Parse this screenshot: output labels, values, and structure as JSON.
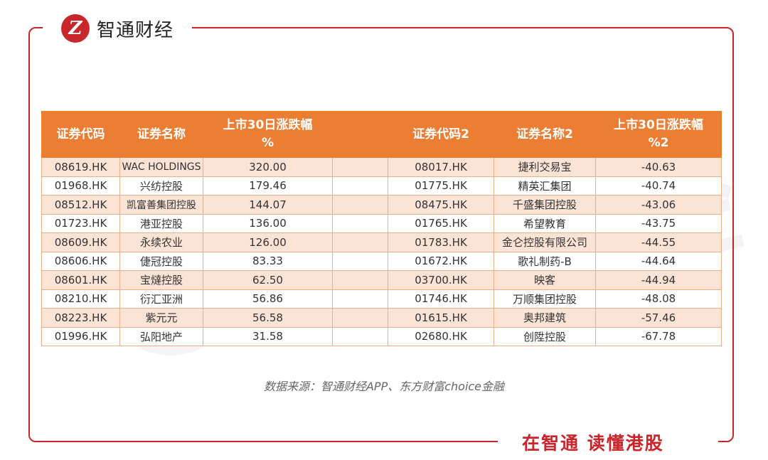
{
  "brand": {
    "logo_glyph": "Z",
    "name": "智通财经",
    "slogan": "在智通 读懂港股",
    "watermark": "智通财经",
    "accent_color": "#c9262c",
    "header_color": "#ec7e33",
    "odd_row_color": "#fbe3d5"
  },
  "table": {
    "headers": [
      "证券代码",
      "证券名称",
      "上市30日涨跌幅%",
      "",
      "证券代码2",
      "证券名称2",
      "上市30日涨跌幅%2"
    ],
    "header_lines": {
      "col3_line1": "上市30日涨跌幅",
      "col3_line2": "%",
      "col7_line1": "上市30日涨跌幅",
      "col7_line2": "%2"
    },
    "rows": [
      [
        "08619.HK",
        "WAC HOLDINGS",
        "320.00",
        "",
        "08017.HK",
        "捷利交易宝",
        "-40.63"
      ],
      [
        "01968.HK",
        "兴纺控股",
        "179.46",
        "",
        "01775.HK",
        "精英汇集团",
        "-40.74"
      ],
      [
        "08512.HK",
        "凯富善集团控股",
        "144.07",
        "",
        "08475.HK",
        "千盛集团控股",
        "-43.06"
      ],
      [
        "01723.HK",
        "港亚控股",
        "136.00",
        "",
        "01765.HK",
        "希望教育",
        "-43.75"
      ],
      [
        "08609.HK",
        "永续农业",
        "126.00",
        "",
        "01783.HK",
        "金仑控股有限公司",
        "-44.55"
      ],
      [
        "08606.HK",
        "倢冠控股",
        "83.33",
        "",
        "01672.HK",
        "歌礼制药-B",
        "-44.64"
      ],
      [
        "08601.HK",
        "宝燵控股",
        "62.50",
        "",
        "03700.HK",
        "映客",
        "-44.94"
      ],
      [
        "08210.HK",
        "衍汇亚洲",
        "56.86",
        "",
        "01746.HK",
        "万顺集团控股",
        "-48.08"
      ],
      [
        "08223.HK",
        "紫元元",
        "56.58",
        "",
        "01615.HK",
        "奥邦建筑",
        "-57.46"
      ],
      [
        "01996.HK",
        "弘阳地产",
        "31.58",
        "",
        "02680.HK",
        "创陞控股",
        "-67.78"
      ]
    ]
  },
  "source": "数据来源：智通财经APP、东方财富choice金融"
}
